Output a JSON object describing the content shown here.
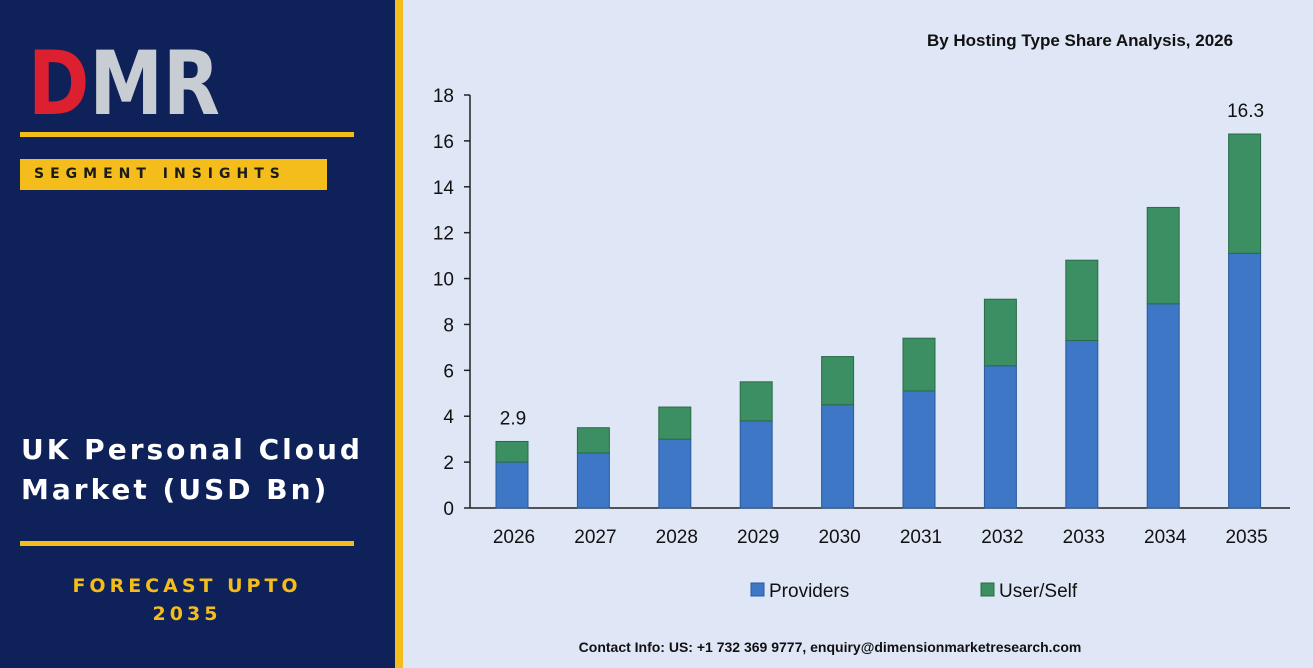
{
  "brand": {
    "logo_text": "DMR",
    "logo_colors": {
      "D": "#dd2030",
      "M": "#c8cdd3",
      "R": "#c8cdd3"
    }
  },
  "sidebar": {
    "badge": "SEGMENT INSIGHTS",
    "title_line1": "UK Personal Cloud",
    "title_line2": "Market (USD Bn)",
    "forecast_line1": "FORECAST UPTO",
    "forecast_line2": "2035"
  },
  "colors": {
    "navy": "#0f2159",
    "gold": "#f4bd1b",
    "panel": "#dfe7f6",
    "providers": "#3d77c5",
    "user_self": "#3b8f62"
  },
  "chart_data": {
    "type": "bar",
    "stacked": true,
    "title": "By Hosting Type Share Analysis, 2026",
    "categories": [
      "2026",
      "2027",
      "2028",
      "2029",
      "2030",
      "2031",
      "2032",
      "2033",
      "2034",
      "2035"
    ],
    "series": [
      {
        "name": "Providers",
        "values": [
          2.0,
          2.4,
          3.0,
          3.8,
          4.5,
          5.1,
          6.2,
          7.3,
          8.9,
          11.1
        ]
      },
      {
        "name": "User/Self",
        "values": [
          0.9,
          1.1,
          1.4,
          1.7,
          2.1,
          2.3,
          2.9,
          3.5,
          4.2,
          5.2
        ]
      }
    ],
    "totals_labels": [
      {
        "index": 0,
        "text": "2.9"
      },
      {
        "index": 9,
        "text": "16.3"
      }
    ],
    "ylim": [
      0,
      18
    ],
    "yticks": [
      0,
      2,
      4,
      6,
      8,
      10,
      12,
      14,
      16,
      18
    ],
    "legend_position": "bottom",
    "grid": false
  },
  "footer": {
    "contact": "Contact Info: US: +1 732 369 9777, enquiry@dimensionmarketresearch.com"
  }
}
